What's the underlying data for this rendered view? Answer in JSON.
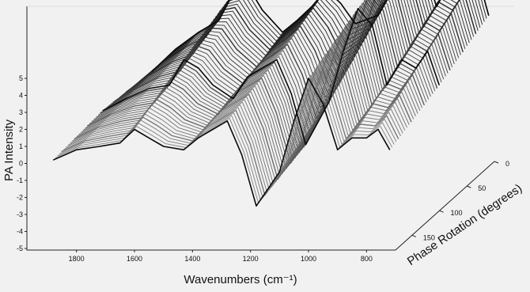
{
  "chart_data": {
    "type": "surface",
    "title": "",
    "xlabel": "Wavenumbers (cm⁻¹)",
    "ylabel": "PA Intensity",
    "zlabel": "Phase Rotation (degrees)",
    "xlim": [
      1900,
      700
    ],
    "ylim": [
      -5,
      5
    ],
    "zlim": [
      0,
      180
    ],
    "x_ticks": [
      "1800",
      "1600",
      "1400",
      "1200",
      "1000",
      "800"
    ],
    "y_ticks": [
      "5",
      "4",
      "3",
      "2",
      "1",
      "0",
      "-1",
      "-2",
      "-3",
      "-4",
      "-5"
    ],
    "z_ticks": [
      "0",
      "50",
      "100",
      "150"
    ],
    "grid": false,
    "legend": "none",
    "colors": {
      "surface_dark": "#111111",
      "surface_light": "#9a9a9a",
      "background": "#f1f1f1"
    },
    "series": [
      {
        "phase": 0,
        "x": [
          1880,
          1800,
          1720,
          1650,
          1600,
          1550,
          1500,
          1430,
          1380,
          1330,
          1280,
          1230,
          1180,
          1100,
          1050,
          1000,
          950,
          900,
          850,
          800,
          760,
          720
        ],
        "y": [
          0.2,
          1.5,
          2.5,
          3.2,
          4.8,
          5.2,
          3.8,
          2.5,
          3.2,
          4.0,
          5.0,
          4.2,
          3.0,
          3.5,
          5.0,
          7.5,
          7.0,
          4.0,
          5.5,
          5.0,
          6.0,
          3.5
        ]
      },
      {
        "phase": 90,
        "x": [
          1880,
          1800,
          1720,
          1650,
          1600,
          1550,
          1500,
          1430,
          1380,
          1330,
          1280,
          1230,
          1180,
          1100,
          1050,
          1000,
          950,
          900,
          850,
          800,
          760,
          720
        ],
        "y": [
          0.5,
          1.2,
          1.8,
          2.0,
          3.5,
          3.0,
          2.0,
          1.2,
          2.5,
          3.0,
          3.5,
          1.5,
          -1.5,
          1.0,
          4.0,
          6.5,
          5.5,
          2.0,
          3.5,
          3.0,
          4.0,
          2.0
        ]
      },
      {
        "phase": 180,
        "x": [
          1880,
          1800,
          1720,
          1650,
          1600,
          1550,
          1500,
          1430,
          1380,
          1330,
          1280,
          1230,
          1180,
          1100,
          1050,
          1000,
          950,
          900,
          850,
          800,
          760,
          720
        ],
        "y": [
          0.2,
          0.8,
          1.0,
          1.2,
          2.0,
          1.5,
          1.0,
          0.8,
          1.5,
          2.0,
          2.5,
          0.5,
          -2.5,
          -0.5,
          2.5,
          5.0,
          3.5,
          0.8,
          1.5,
          1.5,
          2.0,
          0.8
        ]
      }
    ]
  }
}
